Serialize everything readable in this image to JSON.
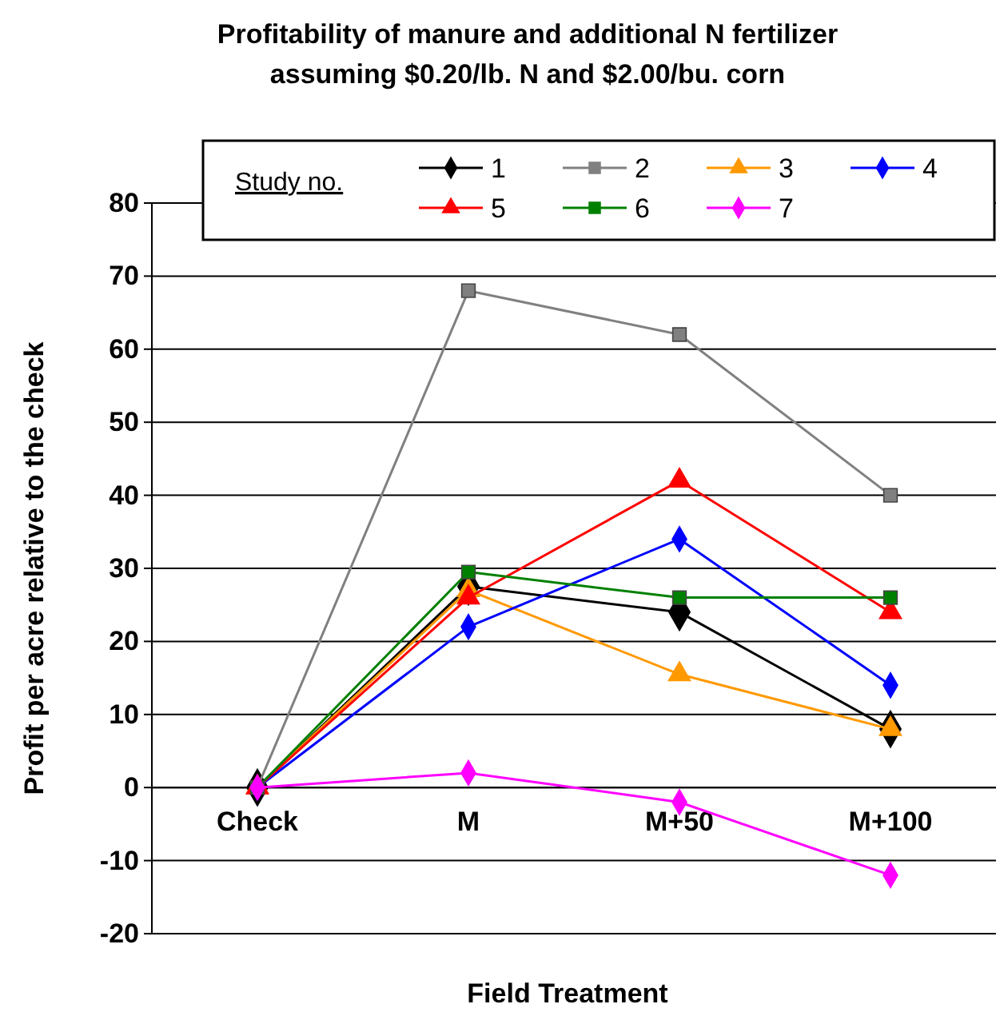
{
  "chart_data": {
    "type": "line",
    "title": "Profitability of manure and additional N fertilizer assuming $0.20/lb. N and $2.00/bu. corn",
    "xlabel": "Field Treatment",
    "ylabel": "Profit per acre relative to the check",
    "legend_title": "Study no.",
    "categories": [
      "Check",
      "M",
      "M+50",
      "M+100"
    ],
    "series": [
      {
        "name": "1",
        "color": "#000000",
        "marker": "diamond",
        "values": [
          0,
          27.5,
          24,
          8
        ]
      },
      {
        "name": "2",
        "color": "#808080",
        "marker": "square",
        "values": [
          0,
          68,
          62,
          40
        ]
      },
      {
        "name": "3",
        "color": "#ff9900",
        "marker": "triangle",
        "values": [
          0,
          27,
          15.5,
          8
        ]
      },
      {
        "name": "4",
        "color": "#0000ff",
        "marker": "diamond",
        "values": [
          0,
          22,
          34,
          14
        ]
      },
      {
        "name": "5",
        "color": "#ff0000",
        "marker": "triangle",
        "values": [
          0,
          26,
          42,
          24
        ]
      },
      {
        "name": "6",
        "color": "#008000",
        "marker": "square",
        "values": [
          0,
          29.5,
          26,
          26
        ]
      },
      {
        "name": "7",
        "color": "#ff00ff",
        "marker": "diamond",
        "values": [
          0,
          2,
          -2,
          -12
        ]
      }
    ],
    "ylim": [
      -20,
      80
    ],
    "yticks": [
      -20,
      -10,
      0,
      10,
      20,
      30,
      40,
      50,
      60,
      70,
      80
    ],
    "grid": "y",
    "legend": "top",
    "line_style": "solid"
  }
}
